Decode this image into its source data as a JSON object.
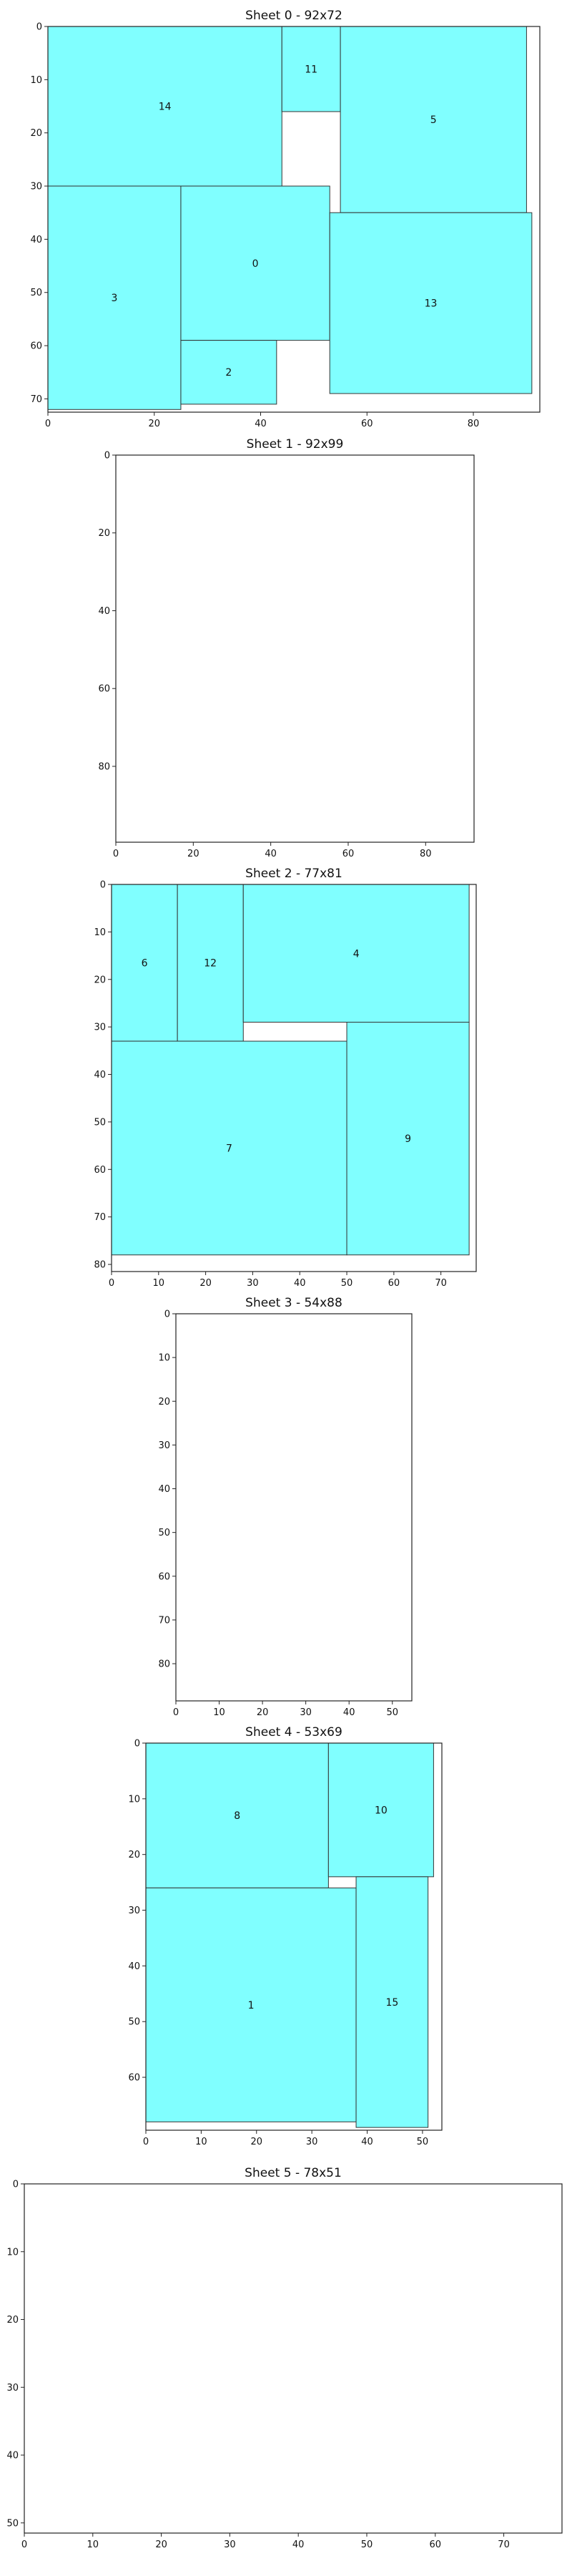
{
  "colors": {
    "piece_fill": "#80ffff",
    "piece_stroke": "#333333",
    "axis": "#222222",
    "background": "#ffffff"
  },
  "chart_data": [
    {
      "type": "rect-packing",
      "title": "Sheet 0 - 92x72",
      "width": 92,
      "height": 72,
      "xticks": [
        0,
        20,
        40,
        60,
        80
      ],
      "yticks": [
        0,
        10,
        20,
        30,
        40,
        50,
        60,
        70
      ],
      "pieces": [
        {
          "id": "14",
          "x": 0,
          "y": 0,
          "w": 44,
          "h": 30
        },
        {
          "id": "11",
          "x": 44,
          "y": 0,
          "w": 11,
          "h": 16
        },
        {
          "id": "5",
          "x": 55,
          "y": 0,
          "w": 35,
          "h": 35
        },
        {
          "id": "3",
          "x": 0,
          "y": 30,
          "w": 25,
          "h": 42
        },
        {
          "id": "0",
          "x": 25,
          "y": 30,
          "w": 28,
          "h": 29
        },
        {
          "id": "2",
          "x": 25,
          "y": 59,
          "w": 18,
          "h": 12
        },
        {
          "id": "13",
          "x": 53,
          "y": 35,
          "w": 38,
          "h": 34
        }
      ]
    },
    {
      "type": "rect-packing",
      "title": "Sheet 1 - 92x99",
      "width": 92,
      "height": 99,
      "xticks": [
        0,
        20,
        40,
        60,
        80
      ],
      "yticks": [
        0,
        20,
        40,
        60,
        80
      ],
      "pieces": []
    },
    {
      "type": "rect-packing",
      "title": "Sheet 2 - 77x81",
      "width": 77,
      "height": 81,
      "xticks": [
        0,
        10,
        20,
        30,
        40,
        50,
        60,
        70
      ],
      "yticks": [
        0,
        10,
        20,
        30,
        40,
        50,
        60,
        70,
        80
      ],
      "pieces": [
        {
          "id": "6",
          "x": 0,
          "y": 0,
          "w": 14,
          "h": 33
        },
        {
          "id": "12",
          "x": 14,
          "y": 0,
          "w": 14,
          "h": 33
        },
        {
          "id": "4",
          "x": 28,
          "y": 0,
          "w": 48,
          "h": 29
        },
        {
          "id": "7",
          "x": 0,
          "y": 33,
          "w": 50,
          "h": 45
        },
        {
          "id": "9",
          "x": 50,
          "y": 29,
          "w": 26,
          "h": 49
        }
      ]
    },
    {
      "type": "rect-packing",
      "title": "Sheet 3 - 54x88",
      "width": 54,
      "height": 88,
      "xticks": [
        0,
        10,
        20,
        30,
        40,
        50
      ],
      "yticks": [
        0,
        10,
        20,
        30,
        40,
        50,
        60,
        70,
        80
      ],
      "pieces": []
    },
    {
      "type": "rect-packing",
      "title": "Sheet 4 - 53x69",
      "width": 53,
      "height": 69,
      "xticks": [
        0,
        10,
        20,
        30,
        40,
        50
      ],
      "yticks": [
        0,
        10,
        20,
        30,
        40,
        50,
        60
      ],
      "pieces": [
        {
          "id": "8",
          "x": 0,
          "y": 0,
          "w": 33,
          "h": 26
        },
        {
          "id": "10",
          "x": 33,
          "y": 0,
          "w": 19,
          "h": 24
        },
        {
          "id": "1",
          "x": 0,
          "y": 26,
          "w": 38,
          "h": 42
        },
        {
          "id": "15",
          "x": 38,
          "y": 24,
          "w": 13,
          "h": 45
        }
      ]
    },
    {
      "type": "rect-packing",
      "title": "Sheet 5 - 78x51",
      "width": 78,
      "height": 51,
      "xticks": [
        0,
        10,
        20,
        30,
        40,
        50,
        60,
        70
      ],
      "yticks": [
        0,
        10,
        20,
        30,
        40,
        50
      ],
      "pieces": []
    }
  ]
}
